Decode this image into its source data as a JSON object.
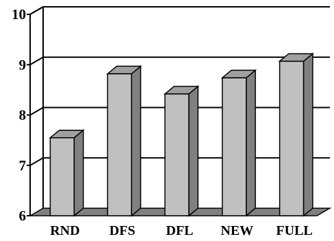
{
  "chart_data": {
    "type": "bar",
    "categories": [
      "RND",
      "DFS",
      "DFL",
      "NEW",
      "FULL"
    ],
    "values": [
      7.55,
      8.82,
      8.42,
      8.74,
      9.07
    ],
    "title": "",
    "xlabel": "",
    "ylabel": "",
    "ylim": [
      6,
      10
    ],
    "yticks": [
      6,
      7,
      8,
      9,
      10
    ],
    "ytick_labels": [
      "6",
      "7",
      "8",
      "9",
      "10"
    ],
    "grid": true,
    "style": "3d",
    "colors": {
      "bar_front": "#c0c0c0",
      "bar_side": "#808080",
      "bar_top": "#a0a0a0",
      "floor": "#808080",
      "grid": "#000000"
    }
  }
}
